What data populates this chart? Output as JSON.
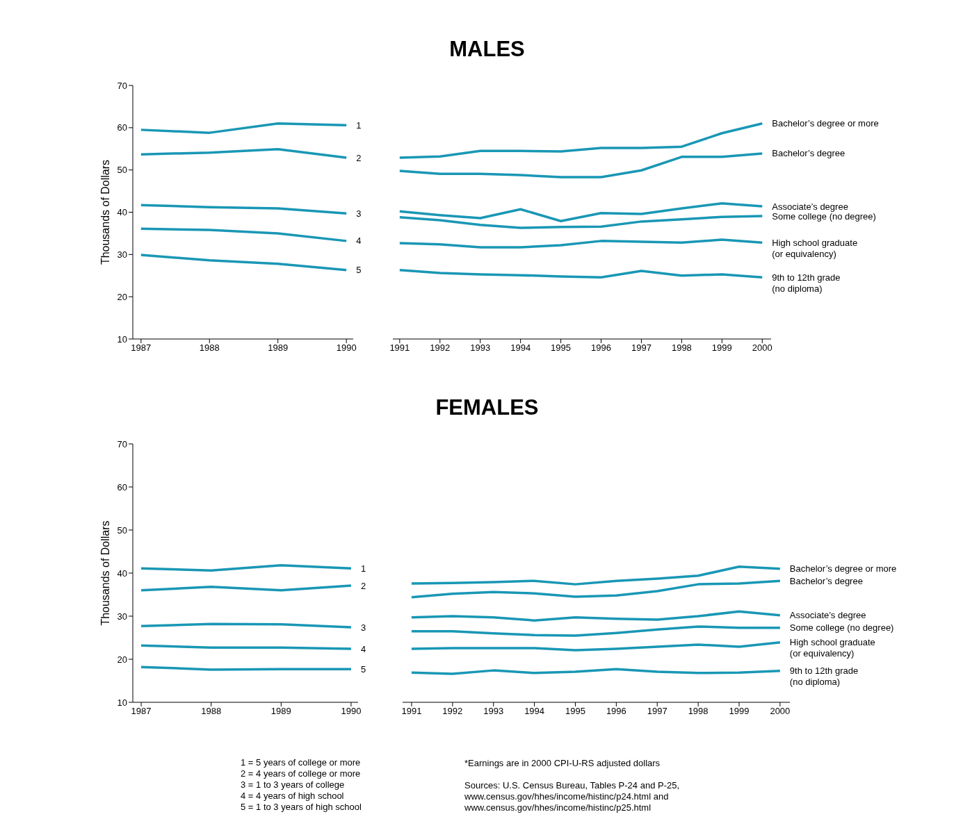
{
  "chart_data": [
    {
      "type": "line",
      "ylabel": "Thousands of Dollars",
      "x": [
        1987,
        1988,
        1989,
        1990
      ],
      "xlim": [
        1986.88,
        1990.1
      ],
      "xticks": [
        1987,
        1988,
        1989,
        1990
      ],
      "ylim": [
        10,
        70
      ],
      "yticks": [
        10,
        20,
        30,
        40,
        50,
        60,
        70
      ],
      "series": [
        {
          "name": "1",
          "color": "#1997b5",
          "values": [
            59.5,
            58.8,
            61.0,
            60.6
          ]
        },
        {
          "name": "2",
          "color": "#1997b5",
          "values": [
            53.7,
            54.1,
            54.9,
            52.9
          ]
        },
        {
          "name": "3",
          "color": "#1997b5",
          "values": [
            41.7,
            41.2,
            40.9,
            39.7
          ]
        },
        {
          "name": "4",
          "color": "#1997b5",
          "values": [
            36.1,
            35.8,
            35.0,
            33.2
          ]
        },
        {
          "name": "5",
          "color": "#1997b5",
          "values": [
            29.9,
            28.6,
            27.8,
            26.3
          ]
        }
      ]
    },
    {
      "type": "line",
      "title": "MALES",
      "x": [
        1991,
        1992,
        1993,
        1994,
        1995,
        1996,
        1997,
        1998,
        1999,
        2000
      ],
      "xlim": [
        1990.83,
        2000.22
      ],
      "xticks": [
        1991,
        1992,
        1993,
        1994,
        1995,
        1996,
        1997,
        1998,
        1999,
        2000
      ],
      "ylim": [
        10,
        70
      ],
      "tick_labels": "x",
      "series": [
        {
          "name": "Bachelor’s degree or more",
          "color": "#1997b5",
          "values": [
            52.9,
            53.2,
            54.5,
            54.5,
            54.4,
            55.2,
            55.2,
            55.5,
            58.7,
            61.0
          ]
        },
        {
          "name": "Bachelor’s degree",
          "color": "#1997b5",
          "values": [
            49.8,
            49.1,
            49.1,
            48.8,
            48.3,
            48.3,
            49.9,
            53.1,
            53.1,
            53.9
          ]
        },
        {
          "name": "Associate’s degree",
          "color": "#1997b5",
          "values": [
            40.2,
            39.3,
            38.6,
            40.7,
            37.9,
            39.8,
            39.6,
            40.9,
            42.1,
            41.4
          ]
        },
        {
          "name": "Some college (no degree)",
          "color": "#1997b5",
          "values": [
            38.8,
            38.1,
            37.0,
            36.3,
            36.5,
            36.6,
            37.8,
            38.3,
            38.9,
            39.1
          ]
        },
        {
          "name": "High school graduate\n(or equivalency)",
          "color": "#1997b5",
          "values": [
            32.7,
            32.4,
            31.7,
            31.7,
            32.2,
            33.2,
            33.0,
            32.8,
            33.5,
            32.8
          ]
        },
        {
          "name": "9th to 12th grade\n(no diploma)",
          "color": "#1997b5",
          "values": [
            26.3,
            25.6,
            25.3,
            25.1,
            24.8,
            24.6,
            26.1,
            25.0,
            25.3,
            24.6
          ]
        }
      ]
    },
    {
      "type": "line",
      "ylabel": "Thousands of Dollars",
      "x": [
        1987,
        1988,
        1989,
        1990
      ],
      "xlim": [
        1986.88,
        1990.1
      ],
      "xticks": [
        1987,
        1988,
        1989,
        1990
      ],
      "ylim": [
        10,
        70
      ],
      "yticks": [
        10,
        20,
        30,
        40,
        50,
        60,
        70
      ],
      "annotations": [
        "1 = 5 years of college or more",
        "2 = 4 years of college or more",
        "3 = 1 to 3 years of college",
        "4 = 4 years of high school",
        "5 = 1 to 3 years of high school"
      ],
      "series": [
        {
          "name": "1",
          "color": "#1997b5",
          "values": [
            41.1,
            40.6,
            41.8,
            41.1
          ]
        },
        {
          "name": "2",
          "color": "#1997b5",
          "values": [
            36.0,
            36.8,
            36.0,
            37.1
          ]
        },
        {
          "name": "3",
          "color": "#1997b5",
          "values": [
            27.7,
            28.2,
            28.1,
            27.4
          ]
        },
        {
          "name": "4",
          "color": "#1997b5",
          "values": [
            23.2,
            22.7,
            22.7,
            22.4
          ]
        },
        {
          "name": "5",
          "color": "#1997b5",
          "values": [
            18.2,
            17.6,
            17.7,
            17.7
          ]
        }
      ]
    },
    {
      "type": "line",
      "title": "FEMALES",
      "x": [
        1991,
        1992,
        1993,
        1994,
        1995,
        1996,
        1997,
        1998,
        1999,
        2000
      ],
      "xlim": [
        1990.78,
        2000.24
      ],
      "xticks": [
        1991,
        1992,
        1993,
        1994,
        1995,
        1996,
        1997,
        1998,
        1999,
        2000
      ],
      "ylim": [
        10,
        70
      ],
      "tick_labels": "x",
      "annotations": [
        "*Earnings are in 2000 CPI-U-RS adjusted dollars",
        "Sources: U.S. Census Bureau, Tables P-24 and P-25,\nwww.census.gov/hhes/income/histinc/p24.html and\nwww.census.gov/hhes/income/histinc/p25.html"
      ],
      "series": [
        {
          "name": "Bachelor’s degree or more",
          "color": "#1997b5",
          "values": [
            37.6,
            37.7,
            37.9,
            38.2,
            37.4,
            38.2,
            38.7,
            39.4,
            41.5,
            41.0
          ]
        },
        {
          "name": "Bachelor’s degree",
          "color": "#1997b5",
          "values": [
            34.4,
            35.2,
            35.6,
            35.3,
            34.5,
            34.8,
            35.8,
            37.4,
            37.6,
            38.2
          ]
        },
        {
          "name": "Associate’s degree",
          "color": "#1997b5",
          "values": [
            29.7,
            30.0,
            29.7,
            29.0,
            29.7,
            29.4,
            29.2,
            30.0,
            31.1,
            30.2
          ]
        },
        {
          "name": "Some college (no degree)",
          "color": "#1997b5",
          "values": [
            26.5,
            26.5,
            26.0,
            25.6,
            25.5,
            26.1,
            26.9,
            27.6,
            27.3,
            27.3
          ]
        },
        {
          "name": "High school graduate\n(or equivalency)",
          "color": "#1997b5",
          "values": [
            22.4,
            22.6,
            22.6,
            22.6,
            22.1,
            22.4,
            22.9,
            23.4,
            22.9,
            23.9
          ]
        },
        {
          "name": "9th to 12th grade\n(no diploma)",
          "color": "#1997b5",
          "values": [
            16.9,
            16.6,
            17.4,
            16.8,
            17.1,
            17.7,
            17.1,
            16.8,
            16.9,
            17.3
          ]
        }
      ]
    }
  ]
}
